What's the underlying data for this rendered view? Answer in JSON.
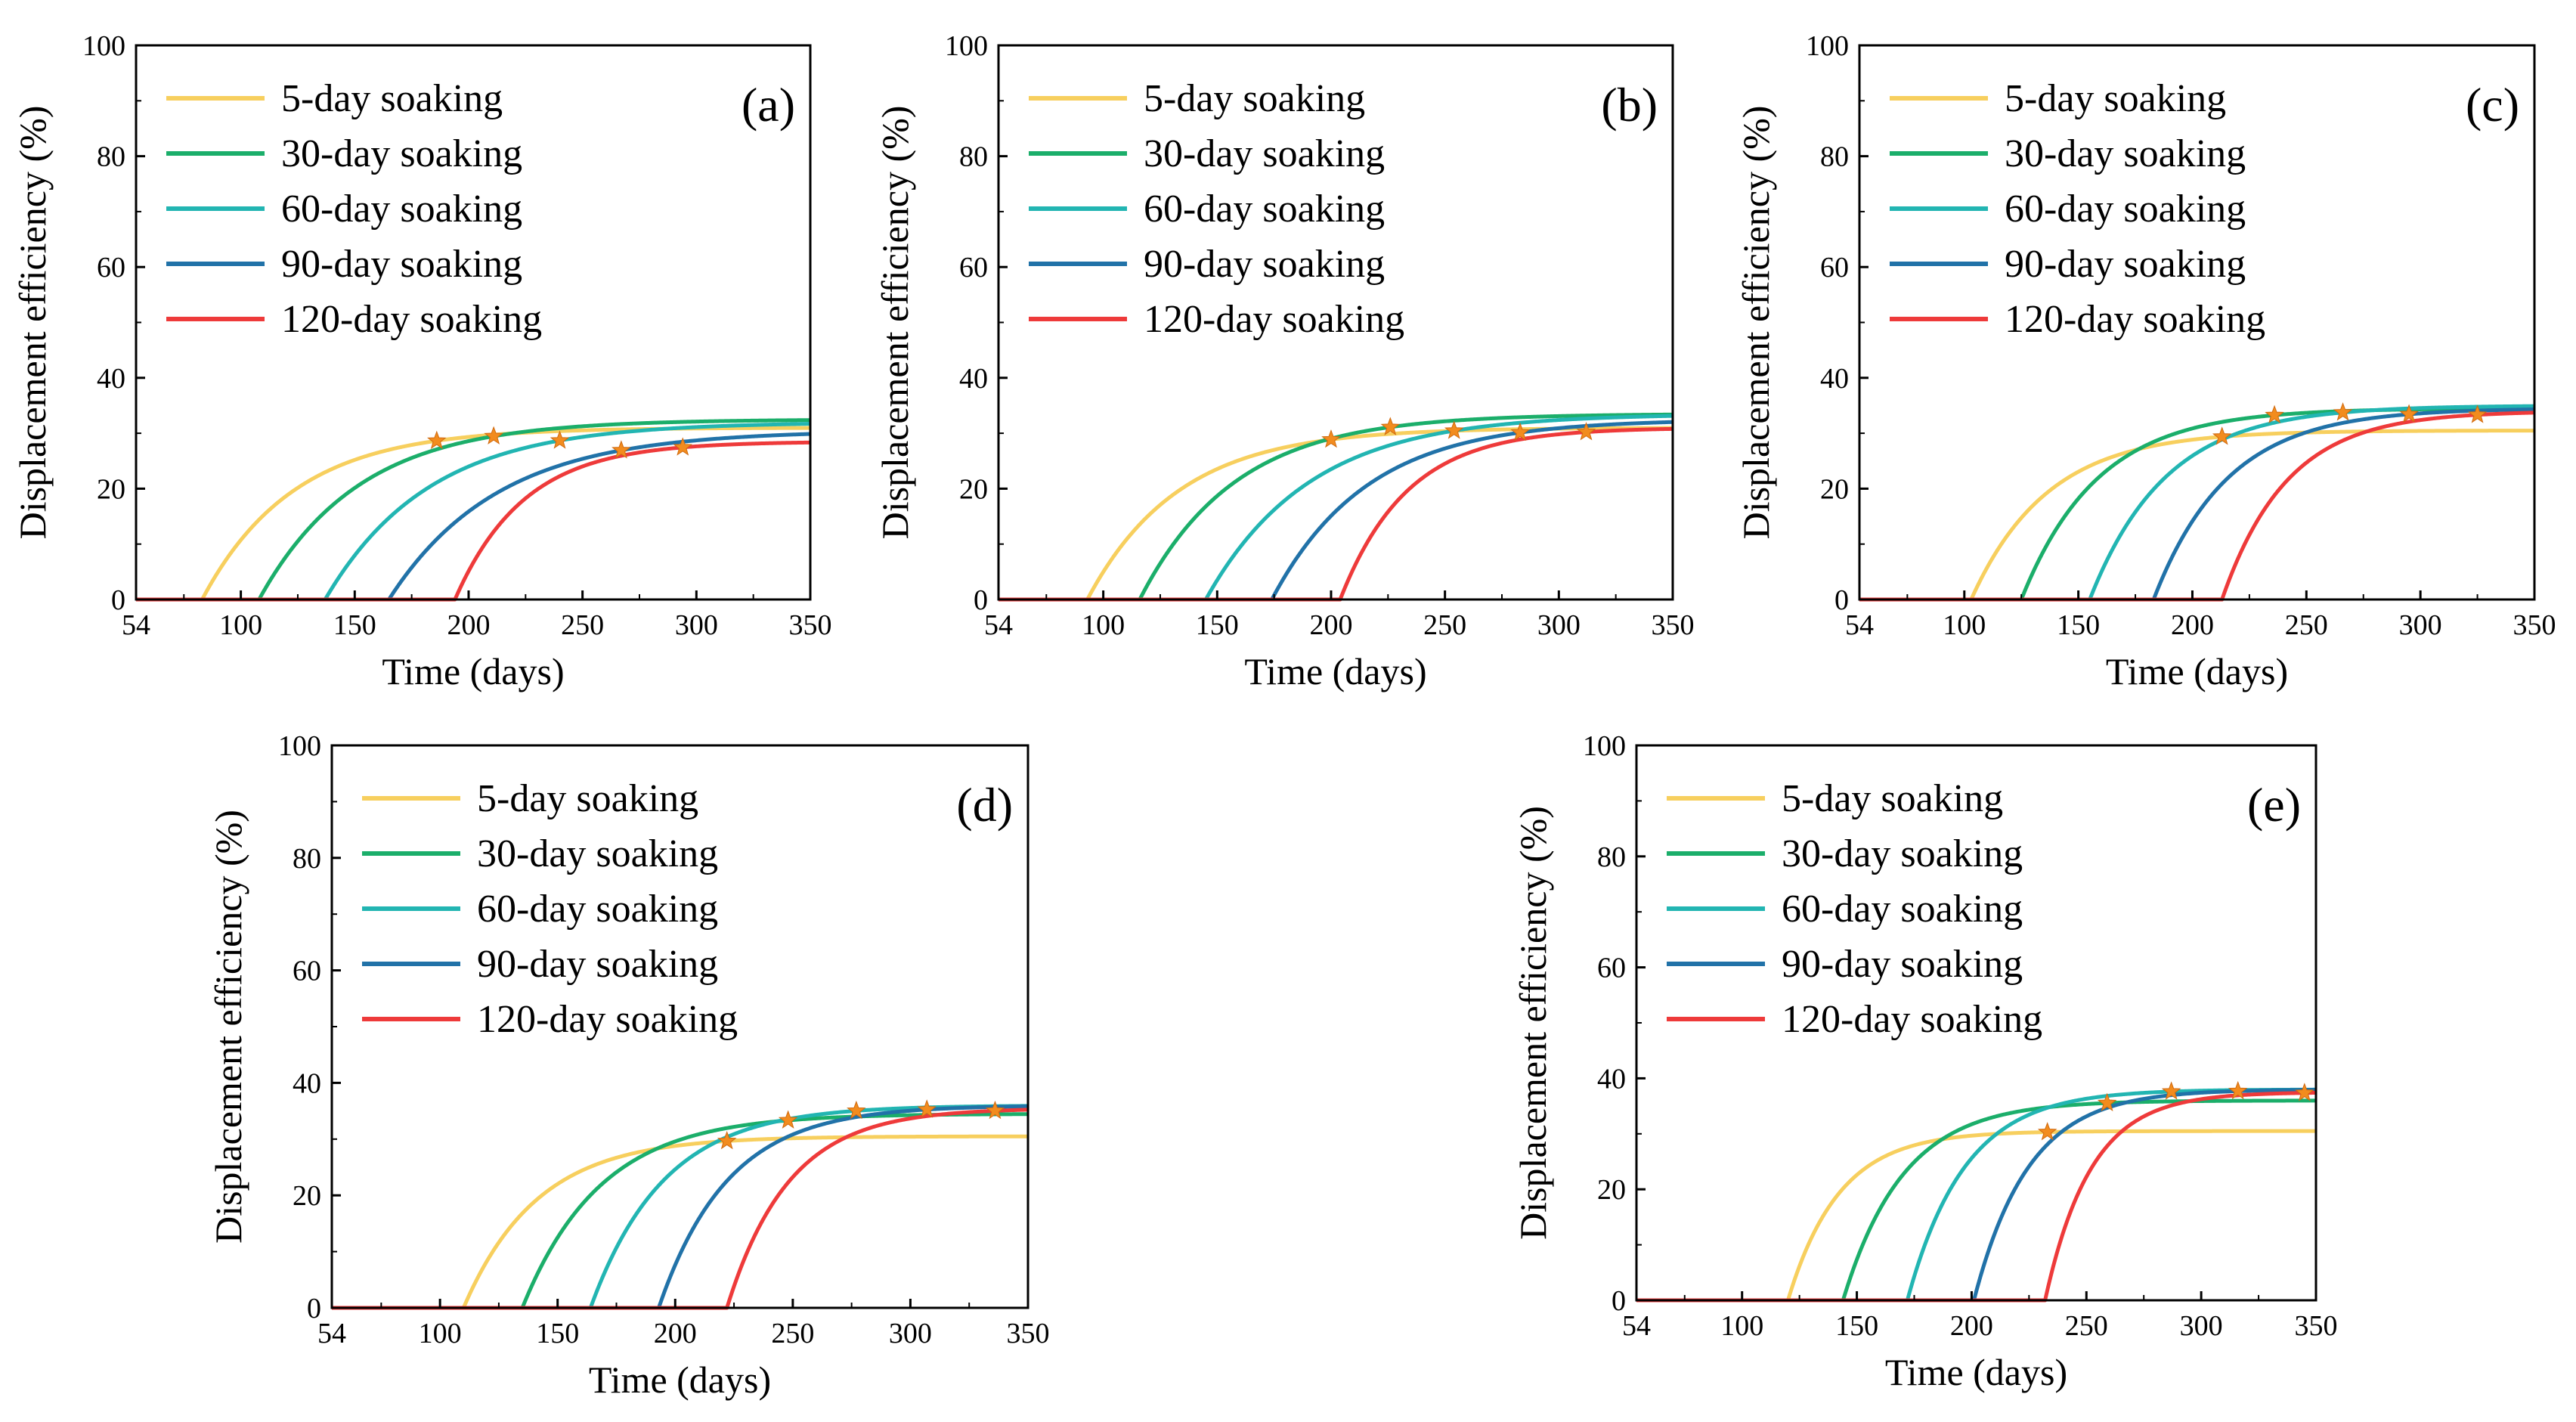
{
  "figure": {
    "description": "Displacement efficiency vs time for different soaking durations (panels a-e)"
  },
  "chart_data": [
    {
      "panel": "(a)",
      "type": "line",
      "xlabel": "Time (days)",
      "ylabel": "Displacement efficiency (%)",
      "xlim": [
        54,
        350
      ],
      "ylim": [
        0,
        100
      ],
      "xticks": [
        "54",
        "100",
        "150",
        "200",
        "250",
        "300",
        "350"
      ],
      "yticks": [
        "0",
        "20",
        "40",
        "60",
        "80",
        "100"
      ],
      "legend_position": "top-left",
      "series": [
        {
          "name": "5-day soaking",
          "color": "#F7CF5E",
          "onset": 83,
          "plateau": 31.0,
          "rate": 0.025,
          "star_x": 186
        },
        {
          "name": "30-day soaking",
          "color": "#1BAE6A",
          "onset": 108,
          "plateau": 32.5,
          "rate": 0.023,
          "star_x": 211
        },
        {
          "name": "60-day soaking",
          "color": "#22B5B2",
          "onset": 137,
          "plateau": 32.0,
          "rate": 0.022,
          "star_x": 240
        },
        {
          "name": "90-day soaking",
          "color": "#2172A8",
          "onset": 165,
          "plateau": 30.5,
          "rate": 0.021,
          "star_x": 267
        },
        {
          "name": "120-day soaking",
          "color": "#EE3A3A",
          "onset": 194,
          "plateau": 28.5,
          "rate": 0.033,
          "star_x": 294
        }
      ]
    },
    {
      "panel": "(b)",
      "type": "line",
      "xlabel": "Time (days)",
      "ylabel": "Displacement efficiency (%)",
      "xlim": [
        54,
        350
      ],
      "ylim": [
        0,
        100
      ],
      "xticks": [
        "54",
        "100",
        "150",
        "200",
        "250",
        "300",
        "350"
      ],
      "yticks": [
        "0",
        "20",
        "40",
        "60",
        "80",
        "100"
      ],
      "legend_position": "top-left",
      "series": [
        {
          "name": "5-day soaking",
          "color": "#F7CF5E",
          "onset": 93,
          "plateau": 31.0,
          "rate": 0.025,
          "star_x": 200
        },
        {
          "name": "30-day soaking",
          "color": "#1BAE6A",
          "onset": 116,
          "plateau": 33.5,
          "rate": 0.024,
          "star_x": 226
        },
        {
          "name": "60-day soaking",
          "color": "#22B5B2",
          "onset": 145,
          "plateau": 33.5,
          "rate": 0.022,
          "star_x": 254
        },
        {
          "name": "90-day soaking",
          "color": "#2172A8",
          "onset": 174,
          "plateau": 32.5,
          "rate": 0.024,
          "star_x": 283
        },
        {
          "name": "120-day soaking",
          "color": "#EE3A3A",
          "onset": 204,
          "plateau": 31.0,
          "rate": 0.034,
          "star_x": 312
        }
      ]
    },
    {
      "panel": "(c)",
      "type": "line",
      "xlabel": "Time (days)",
      "ylabel": "Displacement efficiency (%)",
      "xlim": [
        54,
        350
      ],
      "ylim": [
        0,
        100
      ],
      "xticks": [
        "54",
        "100",
        "150",
        "200",
        "250",
        "300",
        "350"
      ],
      "yticks": [
        "0",
        "20",
        "40",
        "60",
        "80",
        "100"
      ],
      "legend_position": "top-left",
      "series": [
        {
          "name": "5-day soaking",
          "color": "#F7CF5E",
          "onset": 103,
          "plateau": 30.5,
          "rate": 0.03,
          "star_x": 213
        },
        {
          "name": "30-day soaking",
          "color": "#1BAE6A",
          "onset": 125,
          "plateau": 34.5,
          "rate": 0.03,
          "star_x": 236
        },
        {
          "name": "60-day soaking",
          "color": "#22B5B2",
          "onset": 155,
          "plateau": 35.0,
          "rate": 0.03,
          "star_x": 266
        },
        {
          "name": "90-day soaking",
          "color": "#2172A8",
          "onset": 183,
          "plateau": 34.5,
          "rate": 0.031,
          "star_x": 295
        },
        {
          "name": "120-day soaking",
          "color": "#EE3A3A",
          "onset": 213,
          "plateau": 34.0,
          "rate": 0.035,
          "star_x": 325
        }
      ]
    },
    {
      "panel": "(d)",
      "type": "line",
      "xlabel": "Time (days)",
      "ylabel": "Displacement efficiency (%)",
      "xlim": [
        54,
        350
      ],
      "ylim": [
        0,
        100
      ],
      "xticks": [
        "54",
        "100",
        "150",
        "200",
        "250",
        "300",
        "350"
      ],
      "yticks": [
        "0",
        "20",
        "40",
        "60",
        "80",
        "100"
      ],
      "legend_position": "top-left",
      "series": [
        {
          "name": "5-day soaking",
          "color": "#F7CF5E",
          "onset": 110,
          "plateau": 30.5,
          "rate": 0.032,
          "star_x": 222
        },
        {
          "name": "30-day soaking",
          "color": "#1BAE6A",
          "onset": 135,
          "plateau": 34.5,
          "rate": 0.03,
          "star_x": 248
        },
        {
          "name": "60-day soaking",
          "color": "#22B5B2",
          "onset": 164,
          "plateau": 36.0,
          "rate": 0.032,
          "star_x": 277
        },
        {
          "name": "90-day soaking",
          "color": "#2172A8",
          "onset": 193,
          "plateau": 36.0,
          "rate": 0.034,
          "star_x": 307
        },
        {
          "name": "120-day soaking",
          "color": "#EE3A3A",
          "onset": 222,
          "plateau": 35.5,
          "rate": 0.038,
          "star_x": 336
        }
      ]
    },
    {
      "panel": "(e)",
      "type": "line",
      "xlabel": "Time (days)",
      "ylabel": "Displacement efficiency (%)",
      "xlim": [
        54,
        350
      ],
      "ylim": [
        0,
        100
      ],
      "xticks": [
        "54",
        "100",
        "150",
        "200",
        "250",
        "300",
        "350"
      ],
      "yticks": [
        "0",
        "20",
        "40",
        "60",
        "80",
        "100"
      ],
      "legend_position": "top-left",
      "series": [
        {
          "name": "5-day soaking",
          "color": "#F7CF5E",
          "onset": 120,
          "plateau": 30.5,
          "rate": 0.045,
          "star_x": 233
        },
        {
          "name": "30-day soaking",
          "color": "#1BAE6A",
          "onset": 144,
          "plateau": 36.0,
          "rate": 0.038,
          "star_x": 259
        },
        {
          "name": "60-day soaking",
          "color": "#22B5B2",
          "onset": 172,
          "plateau": 38.0,
          "rate": 0.04,
          "star_x": 287
        },
        {
          "name": "90-day soaking",
          "color": "#2172A8",
          "onset": 201,
          "plateau": 38.0,
          "rate": 0.042,
          "star_x": 316
        },
        {
          "name": "120-day soaking",
          "color": "#EE3A3A",
          "onset": 232,
          "plateau": 37.5,
          "rate": 0.05,
          "star_x": 345
        }
      ],
      "star_color": "#F28C1E"
    }
  ],
  "marker_color": "#F28C1E"
}
